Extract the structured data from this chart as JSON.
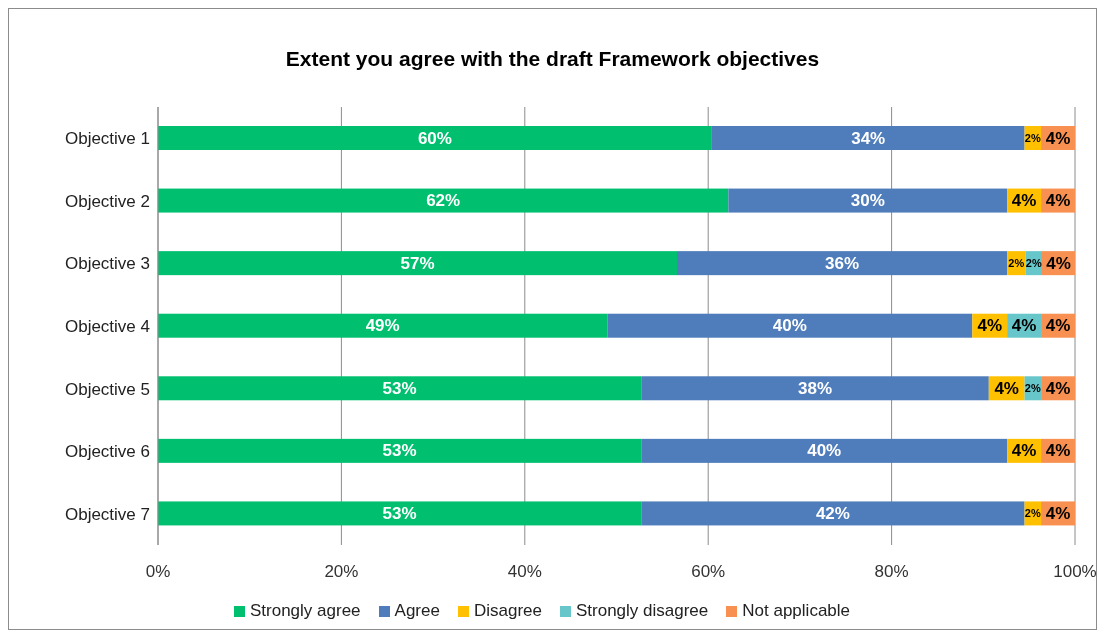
{
  "chart_data": {
    "type": "bar",
    "orientation": "horizontal",
    "stacked": true,
    "title": "Extent you agree with the draft Framework objectives",
    "categories": [
      "Objective 1",
      "Objective 2",
      "Objective 3",
      "Objective 4",
      "Objective 5",
      "Objective 6",
      "Objective 7"
    ],
    "series": [
      {
        "name": "Strongly agree",
        "color": "#00c070",
        "values": [
          60.4,
          62.2,
          56.6,
          49.0,
          52.7,
          52.7,
          52.7
        ],
        "value_labels": [
          "60%",
          "62%",
          "57%",
          "49%",
          "53%",
          "53%",
          "53%"
        ]
      },
      {
        "name": "Agree",
        "color": "#4f7cba",
        "values": [
          34.1,
          30.4,
          36.0,
          39.8,
          37.9,
          39.9,
          41.8
        ],
        "value_labels": [
          "34%",
          "30%",
          "36%",
          "40%",
          "38%",
          "40%",
          "42%"
        ]
      },
      {
        "name": "Disagree",
        "color": "#ffc000",
        "values": [
          1.8,
          3.7,
          2.0,
          3.8,
          3.9,
          3.7,
          1.8
        ],
        "value_labels": [
          "2%",
          "4%",
          "2%",
          "4%",
          "4%",
          "4%",
          "2%"
        ]
      },
      {
        "name": "Strongly disagree",
        "color": "#66c6c9",
        "values": [
          null,
          null,
          1.8,
          3.7,
          1.8,
          null,
          null
        ],
        "value_labels": [
          null,
          null,
          "2%",
          "4%",
          "2%",
          null,
          null
        ]
      },
      {
        "name": "Not applicable",
        "color": "#f79050",
        "values": [
          3.7,
          3.7,
          3.6,
          3.7,
          3.7,
          3.7,
          3.7
        ],
        "value_labels": [
          "4%",
          "4%",
          "4%",
          "4%",
          "4%",
          "4%",
          "4%"
        ]
      }
    ],
    "xlim": [
      0,
      100
    ],
    "xticks": [
      {
        "value": 0,
        "label": "0%"
      },
      {
        "value": 20,
        "label": "20%"
      },
      {
        "value": 40,
        "label": "40%"
      },
      {
        "value": 60,
        "label": "60%"
      },
      {
        "value": 80,
        "label": "80%"
      },
      {
        "value": 100,
        "label": "100%"
      }
    ],
    "grid": "x",
    "legend": "bottom"
  }
}
